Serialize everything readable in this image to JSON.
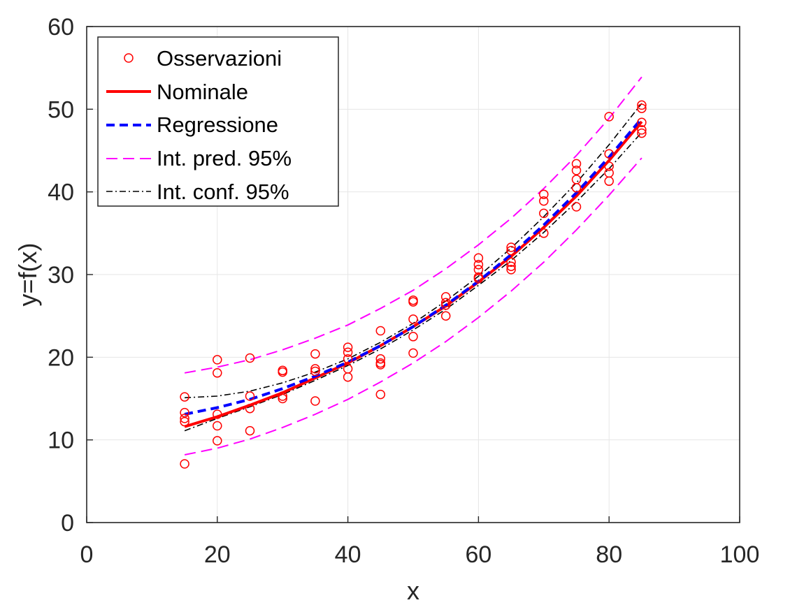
{
  "chart_data": {
    "type": "scatter",
    "title": "",
    "xlabel": "x",
    "ylabel": "y=f(x)",
    "xlim": [
      0,
      100
    ],
    "ylim": [
      0,
      60
    ],
    "xticks": [
      "0",
      "20",
      "40",
      "60",
      "80",
      "100"
    ],
    "yticks": [
      "0",
      "10",
      "20",
      "30",
      "40",
      "50",
      "60"
    ],
    "grid": true,
    "legend_position": "top-left",
    "observations": {
      "name": "Osservazioni",
      "color": "#ff0000",
      "points": [
        [
          15,
          7.1
        ],
        [
          15,
          12.2
        ],
        [
          15,
          12.6
        ],
        [
          15,
          13.3
        ],
        [
          15,
          15.2
        ],
        [
          20,
          9.9
        ],
        [
          20,
          11.7
        ],
        [
          20,
          13.1
        ],
        [
          20,
          18.1
        ],
        [
          20,
          19.7
        ],
        [
          25,
          11.1
        ],
        [
          25,
          13.8
        ],
        [
          25,
          15.3
        ],
        [
          25,
          19.9
        ],
        [
          30,
          15.0
        ],
        [
          30,
          15.3
        ],
        [
          30,
          18.2
        ],
        [
          30,
          18.4
        ],
        [
          35,
          14.7
        ],
        [
          35,
          18.3
        ],
        [
          35,
          18.6
        ],
        [
          35,
          20.4
        ],
        [
          40,
          17.6
        ],
        [
          40,
          18.6
        ],
        [
          40,
          19.8
        ],
        [
          40,
          20.6
        ],
        [
          40,
          21.2
        ],
        [
          45,
          15.5
        ],
        [
          45,
          19.1
        ],
        [
          45,
          19.3
        ],
        [
          45,
          19.8
        ],
        [
          45,
          23.2
        ],
        [
          50,
          20.5
        ],
        [
          50,
          22.5
        ],
        [
          50,
          24.6
        ],
        [
          50,
          26.7
        ],
        [
          50,
          26.9
        ],
        [
          55,
          25.0
        ],
        [
          55,
          26.3
        ],
        [
          55,
          26.6
        ],
        [
          55,
          27.3
        ],
        [
          60,
          29.5
        ],
        [
          60,
          29.7
        ],
        [
          60,
          30.6
        ],
        [
          60,
          31.2
        ],
        [
          60,
          32.0
        ],
        [
          65,
          30.6
        ],
        [
          65,
          31.0
        ],
        [
          65,
          31.5
        ],
        [
          65,
          32.9
        ],
        [
          65,
          33.3
        ],
        [
          70,
          35.0
        ],
        [
          70,
          37.4
        ],
        [
          70,
          38.9
        ],
        [
          70,
          39.7
        ],
        [
          75,
          38.2
        ],
        [
          75,
          40.5
        ],
        [
          75,
          41.5
        ],
        [
          75,
          42.6
        ],
        [
          75,
          43.4
        ],
        [
          80,
          41.3
        ],
        [
          80,
          42.3
        ],
        [
          80,
          43.1
        ],
        [
          80,
          44.6
        ],
        [
          80,
          49.1
        ],
        [
          85,
          47.1
        ],
        [
          85,
          47.5
        ],
        [
          85,
          48.4
        ],
        [
          85,
          50.1
        ],
        [
          85,
          50.5
        ]
      ]
    },
    "series": [
      {
        "name": "Nominale",
        "color": "#ff0000",
        "style": "solid",
        "x": [
          15,
          20,
          25,
          30,
          35,
          40,
          45,
          50,
          55,
          60,
          65,
          70,
          75,
          80,
          85
        ],
        "y": [
          11.6,
          12.8,
          14.2,
          15.7,
          17.5,
          19.3,
          21.4,
          23.7,
          26.2,
          29.1,
          32.2,
          35.7,
          39.5,
          43.8,
          48.5
        ]
      },
      {
        "name": "Regressione",
        "color": "#0000ff",
        "style": "dashed",
        "x": [
          15,
          20,
          25,
          30,
          35,
          40,
          45,
          50,
          55,
          60,
          65,
          70,
          75,
          80,
          85
        ],
        "y": [
          13.1,
          13.9,
          14.9,
          16.2,
          17.7,
          19.4,
          21.4,
          23.7,
          26.3,
          29.2,
          32.4,
          36.0,
          39.9,
          44.2,
          48.9
        ]
      },
      {
        "name": "Int. pred. 95%",
        "color": "#ff00ff",
        "style": "long-dashed",
        "bands": [
          {
            "x": [
              15,
              20,
              25,
              30,
              35,
              40,
              45,
              50,
              55,
              60,
              65,
              70,
              75,
              80,
              85
            ],
            "y": [
              18.1,
              18.8,
              19.7,
              20.9,
              22.3,
              23.9,
              25.9,
              28.1,
              30.7,
              33.6,
              36.8,
              40.4,
              44.4,
              48.9,
              53.9
            ]
          },
          {
            "x": [
              15,
              20,
              25,
              30,
              35,
              40,
              45,
              50,
              55,
              60,
              65,
              70,
              75,
              80,
              85
            ],
            "y": [
              8.2,
              9.0,
              10.1,
              11.5,
              13.1,
              14.9,
              17.0,
              19.3,
              21.9,
              24.8,
              28.0,
              31.5,
              35.4,
              39.6,
              44.1
            ]
          }
        ]
      },
      {
        "name": "Int. conf. 95%",
        "color": "#000000",
        "style": "dash-dot",
        "bands": [
          {
            "x": [
              15,
              20,
              25,
              30,
              35,
              40,
              45,
              50,
              55,
              60,
              65,
              70,
              75,
              80,
              85
            ],
            "y": [
              15.1,
              15.3,
              15.9,
              16.9,
              18.2,
              19.8,
              21.8,
              24.1,
              26.8,
              29.8,
              33.2,
              37.0,
              41.1,
              45.7,
              50.7
            ]
          },
          {
            "x": [
              15,
              20,
              25,
              30,
              35,
              40,
              45,
              50,
              55,
              60,
              65,
              70,
              75,
              80,
              85
            ],
            "y": [
              11.1,
              12.6,
              14.0,
              15.5,
              17.2,
              19.0,
              21.0,
              23.3,
              25.8,
              28.7,
              31.7,
              35.1,
              38.8,
              42.8,
              47.2
            ]
          }
        ]
      }
    ]
  }
}
